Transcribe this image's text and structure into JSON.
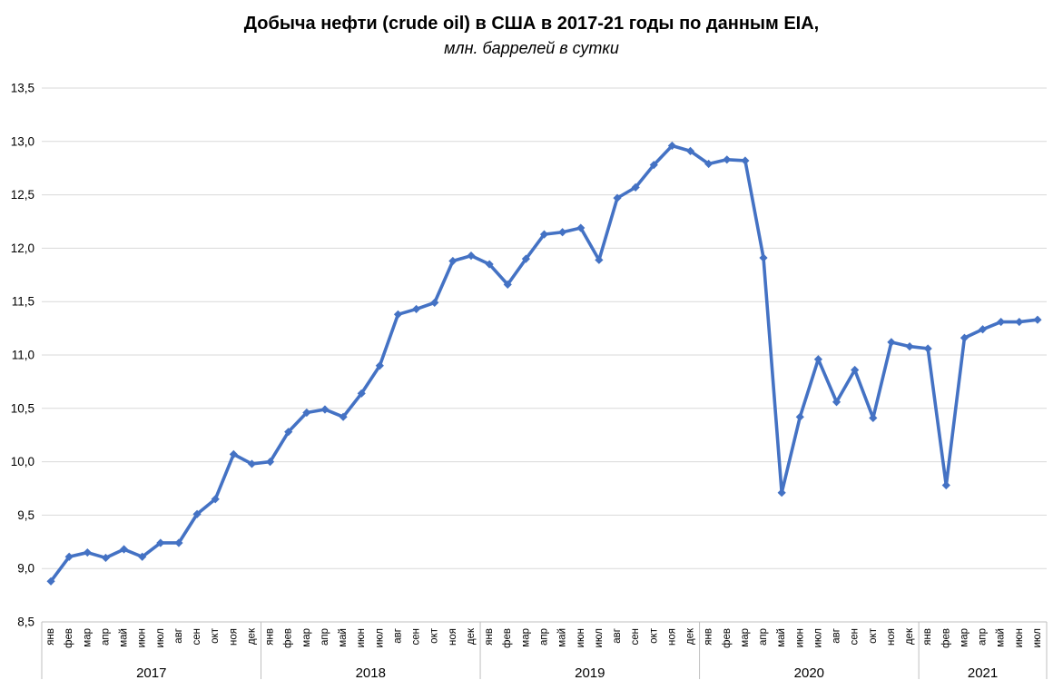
{
  "title": "Добыча нефти (crude oil) в США в 2017-21 годы по данным EIA,",
  "subtitle": "млн. баррелей в сутки",
  "colors": {
    "background": "#FFFFFF",
    "series": "#4472C4",
    "grid": "#D9D9D9",
    "axis": "#BFBFBF",
    "text": "#000000"
  },
  "chart_data": {
    "type": "line",
    "title": "Добыча нефти (crude oil) в США в 2017-21 годы по данным EIA,",
    "subtitle": "млн. баррелей в сутки",
    "ylabel": "",
    "xlabel": "",
    "ylim": [
      8.5,
      13.5
    ],
    "ytick_step": 0.5,
    "decimal_separator": ",",
    "grid": true,
    "legend": false,
    "month_labels": [
      "янв",
      "фев",
      "мар",
      "апр",
      "май",
      "июн",
      "июл",
      "авг",
      "сен",
      "окт",
      "ноя",
      "дек"
    ],
    "year_groups": [
      {
        "year": "2017",
        "months": 12
      },
      {
        "year": "2018",
        "months": 12
      },
      {
        "year": "2019",
        "months": 12
      },
      {
        "year": "2020",
        "months": 12
      },
      {
        "year": "2021",
        "months": 7
      }
    ],
    "values": [
      8.88,
      9.11,
      9.15,
      9.1,
      9.18,
      9.11,
      9.24,
      9.24,
      9.51,
      9.65,
      10.07,
      9.98,
      10.0,
      10.28,
      10.46,
      10.49,
      10.42,
      10.64,
      10.9,
      11.38,
      11.43,
      11.49,
      11.88,
      11.93,
      11.85,
      11.66,
      11.9,
      12.13,
      12.15,
      12.19,
      11.89,
      12.47,
      12.57,
      12.78,
      12.96,
      12.91,
      12.79,
      12.83,
      12.82,
      11.91,
      9.71,
      10.42,
      10.96,
      10.56,
      10.86,
      10.41,
      11.12,
      11.08,
      11.06,
      9.78,
      11.16,
      11.24,
      11.31,
      11.31,
      11.33
    ]
  }
}
